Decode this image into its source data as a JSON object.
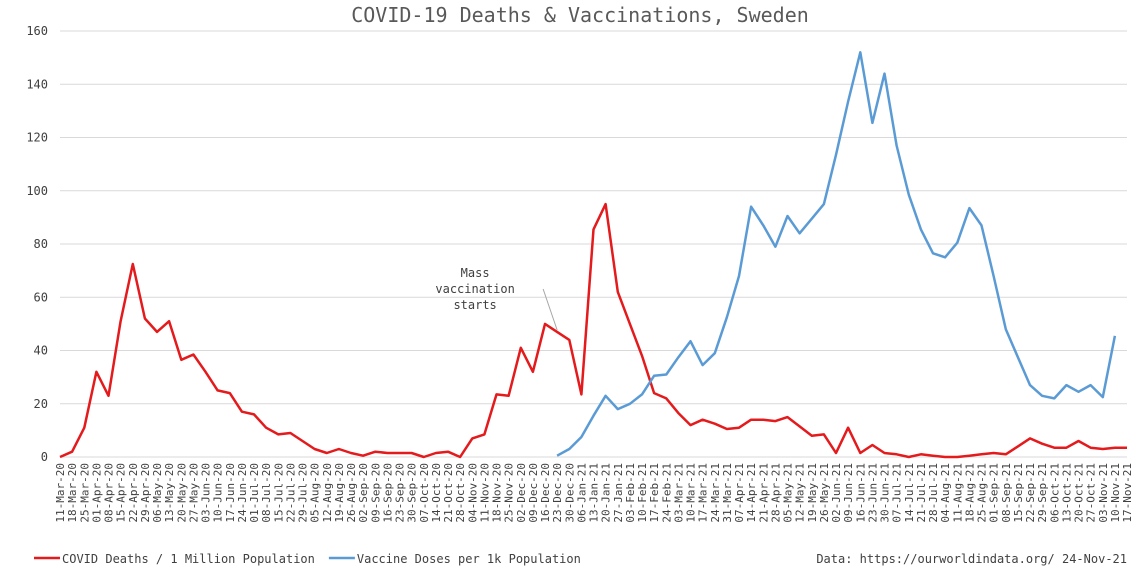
{
  "chart_data": {
    "type": "line",
    "title": "COVID-19 Deaths & Vaccinations, Sweden",
    "source": "Data: https://ourworldindata.org/ 24-Nov-21",
    "annotation": {
      "lines": [
        "Mass",
        "vaccination",
        "starts"
      ],
      "category": "23-Dec-20"
    },
    "categories": [
      "11-Mar-20",
      "18-Mar-20",
      "25-Mar-20",
      "01-Apr-20",
      "08-Apr-20",
      "15-Apr-20",
      "22-Apr-20",
      "29-Apr-20",
      "06-May-20",
      "13-May-20",
      "20-May-20",
      "27-May-20",
      "03-Jun-20",
      "10-Jun-20",
      "17-Jun-20",
      "24-Jun-20",
      "01-Jul-20",
      "08-Jul-20",
      "15-Jul-20",
      "22-Jul-20",
      "29-Jul-20",
      "05-Aug-20",
      "12-Aug-20",
      "19-Aug-20",
      "26-Aug-20",
      "02-Sep-20",
      "09-Sep-20",
      "16-Sep-20",
      "23-Sep-20",
      "30-Sep-20",
      "07-Oct-20",
      "14-Oct-20",
      "21-Oct-20",
      "28-Oct-20",
      "04-Nov-20",
      "11-Nov-20",
      "18-Nov-20",
      "25-Nov-20",
      "02-Dec-20",
      "09-Dec-20",
      "16-Dec-20",
      "23-Dec-20",
      "30-Dec-20",
      "06-Jan-21",
      "13-Jan-21",
      "20-Jan-21",
      "27-Jan-21",
      "03-Feb-21",
      "10-Feb-21",
      "17-Feb-21",
      "24-Feb-21",
      "03-Mar-21",
      "10-Mar-21",
      "17-Mar-21",
      "24-Mar-21",
      "31-Mar-21",
      "07-Apr-21",
      "14-Apr-21",
      "21-Apr-21",
      "28-Apr-21",
      "05-May-21",
      "12-May-21",
      "19-May-21",
      "26-May-21",
      "02-Jun-21",
      "09-Jun-21",
      "16-Jun-21",
      "23-Jun-21",
      "30-Jun-21",
      "07-Jul-21",
      "14-Jul-21",
      "21-Jul-21",
      "28-Jul-21",
      "04-Aug-21",
      "11-Aug-21",
      "18-Aug-21",
      "25-Aug-21",
      "01-Sep-21",
      "08-Sep-21",
      "15-Sep-21",
      "22-Sep-21",
      "29-Sep-21",
      "06-Oct-21",
      "13-Oct-21",
      "20-Oct-21",
      "27-Oct-21",
      "03-Nov-21",
      "10-Nov-21",
      "17-Nov-21"
    ],
    "series": [
      {
        "name": "COVID Deaths / 1 Million Population",
        "color": "#e41a1c",
        "values": [
          0,
          2,
          11,
          32,
          23,
          51,
          72.5,
          52,
          47,
          51,
          36.5,
          38.5,
          32,
          25,
          24,
          17,
          16,
          11,
          8.5,
          9,
          6,
          3,
          1.5,
          3,
          1.5,
          0.5,
          2,
          1.5,
          1.5,
          1.5,
          0,
          1.5,
          2,
          0,
          7,
          8.5,
          23.5,
          23,
          41,
          32,
          50,
          47,
          44,
          23.5,
          85.5,
          95,
          62,
          50,
          38,
          24,
          22,
          16.5,
          12,
          14,
          12.5,
          10.5,
          11,
          14,
          14,
          13.5,
          15,
          11.5,
          8,
          8.5,
          1.5,
          11,
          1.5,
          4.5,
          1.5,
          1,
          0,
          1,
          0.5,
          0,
          0,
          0.5,
          1,
          1.5,
          1,
          4,
          7,
          5,
          3.5,
          3.5,
          6,
          3.5,
          3,
          3.5,
          3.5
        ]
      },
      {
        "name": "Vaccine Doses per 1k Population",
        "color": "#5b9bd5",
        "values": [
          null,
          null,
          null,
          null,
          null,
          null,
          null,
          null,
          null,
          null,
          null,
          null,
          null,
          null,
          null,
          null,
          null,
          null,
          null,
          null,
          null,
          null,
          null,
          null,
          null,
          null,
          null,
          null,
          null,
          null,
          null,
          null,
          null,
          null,
          null,
          null,
          null,
          null,
          null,
          null,
          null,
          0.5,
          3,
          7.5,
          15.5,
          23,
          18,
          20,
          23.5,
          30.5,
          31,
          37.5,
          43.5,
          34.5,
          39,
          52.5,
          68,
          94,
          87,
          79,
          90.5,
          84,
          89.5,
          95,
          113.5,
          133.5,
          152,
          125.5,
          144,
          117,
          98.5,
          85.5,
          76.5,
          75,
          80.5,
          93.5,
          87,
          68,
          48,
          37.5,
          27,
          23,
          22,
          27,
          24.5,
          27,
          22.5,
          45.5,
          null
        ]
      }
    ],
    "ylim": [
      0,
      160
    ],
    "yticks": [
      0,
      20,
      40,
      60,
      80,
      100,
      120,
      140,
      160
    ],
    "grid": true,
    "legend": "bottom-left"
  }
}
